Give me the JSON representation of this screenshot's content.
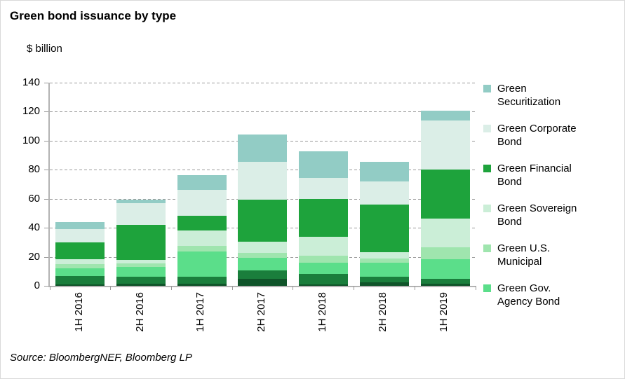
{
  "title": "Green bond issuance by type",
  "axis_unit": "$ billion",
  "source": "Source: BloombergNEF, Bloomberg LP",
  "colors": {
    "securitization": "#92CCC5",
    "corporate": "#DBEEE7",
    "financial": "#1EA33C",
    "sovereign": "#CBEED7",
    "municipal": "#9FE5AE",
    "gov_agency": "#5BDE8A",
    "unlabeled_dark": "#1A7E3C",
    "unlabeled_darkest": "#0F5429",
    "gridline": "#9a9a9a",
    "axis": "#b3b3b3"
  },
  "chart_data": {
    "type": "bar",
    "stacked": true,
    "title": "Green bond issuance by type",
    "ylabel": "$ billion",
    "xlabel": "",
    "ylim": [
      0,
      140
    ],
    "ytick_interval": 20,
    "ytick_labels": [
      "0",
      "20",
      "40",
      "60",
      "80",
      "100",
      "120",
      "140"
    ],
    "grid": "horizontal dashed",
    "legend_position": "right",
    "categories": [
      "1H 2016",
      "2H 2016",
      "1H 2017",
      "2H 2017",
      "1H 2018",
      "2H 2018",
      "1H 2019"
    ],
    "series": [
      {
        "name": "unlabeled (darkest green band)",
        "in_visible_legend": false,
        "color": "#0F5429",
        "values": [
          1,
          1.5,
          1.5,
          5,
          1,
          2.5,
          1.5
        ]
      },
      {
        "name": "unlabeled (dark green band)",
        "in_visible_legend": false,
        "color": "#1A7E3C",
        "values": [
          6,
          5,
          5,
          5.5,
          7,
          4,
          3.5
        ]
      },
      {
        "name": "Green Gov. Agency Bond",
        "in_visible_legend": true,
        "color": "#5BDE8A",
        "values": [
          5,
          6.5,
          17,
          9,
          8,
          9.5,
          13.5
        ]
      },
      {
        "name": "Green U.S. Municipal",
        "in_visible_legend": true,
        "color": "#9FE5AE",
        "values": [
          3,
          2.5,
          4,
          3,
          5,
          3,
          8
        ]
      },
      {
        "name": "Green Sovereign Bond",
        "in_visible_legend": true,
        "color": "#CBEED7",
        "values": [
          3.5,
          2.5,
          10.5,
          8,
          13,
          4,
          20
        ]
      },
      {
        "name": "Green Financial Bond",
        "in_visible_legend": true,
        "color": "#1EA33C",
        "values": [
          11.5,
          24,
          10.5,
          29,
          26,
          33,
          33.5
        ]
      },
      {
        "name": "Green Corporate Bond",
        "in_visible_legend": true,
        "color": "#DBEEE7",
        "values": [
          9,
          15,
          17.5,
          26,
          14.5,
          16,
          34
        ]
      },
      {
        "name": "Green Securitization",
        "in_visible_legend": true,
        "color": "#92CCC5",
        "values": [
          5,
          2.5,
          10.5,
          19,
          18,
          13.5,
          6.5
        ]
      }
    ],
    "totals": [
      44,
      59.5,
      76.5,
      104.5,
      92.5,
      85.5,
      120.5
    ],
    "series_stack_order": "first listed series is at the bottom of each bar"
  },
  "legend": {
    "items": [
      {
        "label": "Green Securitization",
        "lines": [
          "Green",
          "Securitization"
        ],
        "color": "#92CCC5"
      },
      {
        "label": "Green Corporate Bond",
        "lines": [
          "Green Corporate",
          "Bond"
        ],
        "color": "#DBEEE7"
      },
      {
        "label": "Green Financial Bond",
        "lines": [
          "Green Financial",
          "Bond"
        ],
        "color": "#1EA33C"
      },
      {
        "label": "Green Sovereign Bond",
        "lines": [
          "Green Sovereign",
          "Bond"
        ],
        "color": "#CBEED7"
      },
      {
        "label": "Green U.S. Municipal",
        "lines": [
          "Green U.S.",
          "Municipal"
        ],
        "color": "#9FE5AE"
      },
      {
        "label": "Green Gov. Agency Bond",
        "lines": [
          "Green Gov.",
          "Agency Bond"
        ],
        "color": "#5BDE8A"
      }
    ]
  }
}
